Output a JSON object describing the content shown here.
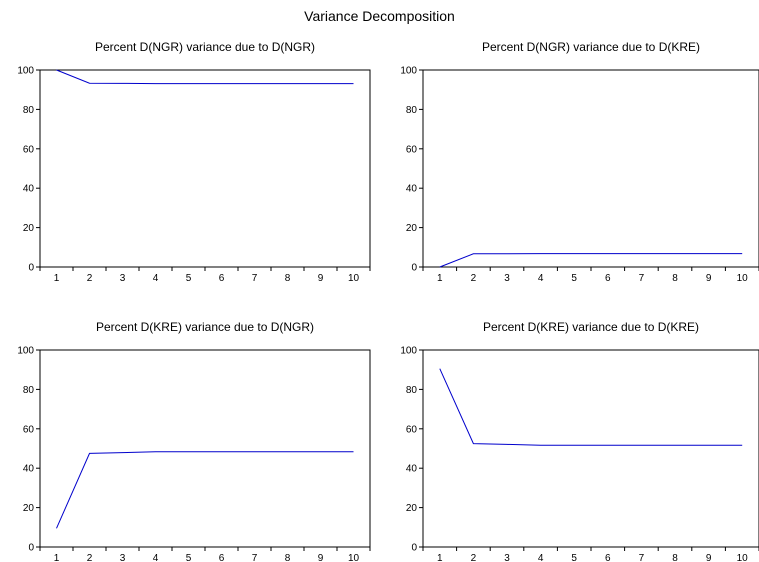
{
  "title": "Variance Decomposition",
  "chart_data": [
    {
      "type": "line",
      "title": "Percent D(NGR) variance due to D(NGR)",
      "x": [
        1,
        2,
        3,
        4,
        5,
        6,
        7,
        8,
        9,
        10
      ],
      "xticks": [
        "1",
        "2",
        "3",
        "4",
        "5",
        "6",
        "7",
        "8",
        "9",
        "10"
      ],
      "ylim": [
        0,
        100
      ],
      "yticks": [
        0,
        20,
        40,
        60,
        80,
        100
      ],
      "series": [
        {
          "values": [
            100,
            93.3,
            93.2,
            93.1,
            93.1,
            93.1,
            93.1,
            93.1,
            93.1,
            93.1
          ],
          "color": "#0000cc"
        }
      ],
      "grid": false
    },
    {
      "type": "line",
      "title": "Percent D(NGR) variance due to D(KRE)",
      "x": [
        1,
        2,
        3,
        4,
        5,
        6,
        7,
        8,
        9,
        10
      ],
      "xticks": [
        "1",
        "2",
        "3",
        "4",
        "5",
        "6",
        "7",
        "8",
        "9",
        "10"
      ],
      "ylim": [
        0,
        100
      ],
      "yticks": [
        0,
        20,
        40,
        60,
        80,
        100
      ],
      "series": [
        {
          "values": [
            0,
            6.7,
            6.7,
            6.8,
            6.8,
            6.8,
            6.8,
            6.8,
            6.8,
            6.8
          ],
          "color": "#0000cc"
        }
      ],
      "grid": false
    },
    {
      "type": "line",
      "title": "Percent D(KRE) variance due to D(NGR)",
      "x": [
        1,
        2,
        3,
        4,
        5,
        6,
        7,
        8,
        9,
        10
      ],
      "xticks": [
        "1",
        "2",
        "3",
        "4",
        "5",
        "6",
        "7",
        "8",
        "9",
        "10"
      ],
      "ylim": [
        0,
        100
      ],
      "yticks": [
        0,
        20,
        40,
        60,
        80,
        100
      ],
      "series": [
        {
          "values": [
            9.5,
            47.5,
            47.9,
            48.3,
            48.4,
            48.4,
            48.4,
            48.4,
            48.4,
            48.4
          ],
          "color": "#0000cc"
        }
      ],
      "grid": false
    },
    {
      "type": "line",
      "title": "Percent D(KRE) variance due to D(KRE)",
      "x": [
        1,
        2,
        3,
        4,
        5,
        6,
        7,
        8,
        9,
        10
      ],
      "xticks": [
        "1",
        "2",
        "3",
        "4",
        "5",
        "6",
        "7",
        "8",
        "9",
        "10"
      ],
      "ylim": [
        0,
        100
      ],
      "yticks": [
        0,
        20,
        40,
        60,
        80,
        100
      ],
      "series": [
        {
          "values": [
            90.5,
            52.5,
            52.1,
            51.7,
            51.6,
            51.6,
            51.6,
            51.6,
            51.6,
            51.6
          ],
          "color": "#0000cc"
        }
      ],
      "grid": false
    }
  ]
}
